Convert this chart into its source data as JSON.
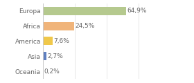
{
  "categories": [
    "Europa",
    "Africa",
    "America",
    "Asia",
    "Oceania"
  ],
  "values": [
    64.9,
    24.5,
    7.6,
    2.7,
    0.2
  ],
  "labels": [
    "64,9%",
    "24,5%",
    "7,6%",
    "2,7%",
    "0,2%"
  ],
  "bar_colors": [
    "#b5c98e",
    "#f0b47a",
    "#f0c84a",
    "#6080c0",
    "#cccccc"
  ],
  "background_color": "#ffffff",
  "text_color": "#666666",
  "label_fontsize": 6.5,
  "bar_label_fontsize": 6.5,
  "xlim": [
    0,
    100
  ],
  "grid_ticks": [
    0,
    25,
    50,
    75,
    100
  ],
  "bar_height": 0.55
}
